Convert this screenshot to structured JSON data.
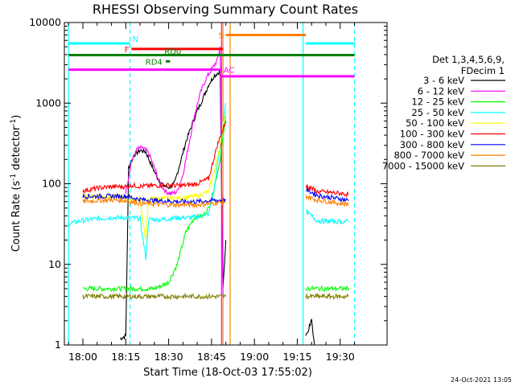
{
  "chart_data": {
    "type": "line",
    "title": "RHESSI Observing Summary Count Rates",
    "xlabel": "Start Time (18-Oct-03 17:55:02)",
    "ylabel_prefix": "Count Rate (s",
    "ylabel_sup": "-1",
    "ylabel_mid": " detector",
    "ylabel_suffix": ")",
    "y_scale": "log",
    "ylim": [
      1,
      10000
    ],
    "xlim_minutes": [
      -5,
      36
    ],
    "x_ticks": [
      {
        "label": "18:00",
        "minute": 0
      },
      {
        "label": "18:15",
        "minute": 15
      },
      {
        "label": "18:30",
        "minute": 30
      },
      {
        "label": "18:45",
        "minute": 45
      },
      {
        "label": "19:00",
        "minute": 60
      },
      {
        "label": "19:15",
        "minute": 75
      },
      {
        "label": "19:30",
        "minute": 90
      }
    ],
    "y_ticks": [
      {
        "label": "1",
        "value": 1
      },
      {
        "label": "10",
        "value": 10
      },
      {
        "label": "100",
        "value": 100
      },
      {
        "label": "1000",
        "value": 1000
      },
      {
        "label": "10000",
        "value": 10000
      }
    ],
    "legend_header": [
      "Det 1,3,4,5,6,9,",
      "FDecim 1"
    ],
    "legend_position": "right",
    "series": [
      {
        "name": "3 - 6 keV",
        "color": "#000000",
        "points": [
          [
            13,
            1.2
          ],
          [
            15,
            1.3
          ],
          [
            16,
            160
          ],
          [
            18,
            230
          ],
          [
            20,
            260
          ],
          [
            22,
            250
          ],
          [
            24,
            170
          ],
          [
            26,
            120
          ],
          [
            28,
            95
          ],
          [
            30,
            90
          ],
          [
            32,
            100
          ],
          [
            34,
            180
          ],
          [
            36,
            330
          ],
          [
            38,
            520
          ],
          [
            40,
            800
          ],
          [
            42,
            1150
          ],
          [
            44,
            1700
          ],
          [
            46,
            2200
          ],
          [
            48,
            2500
          ],
          [
            49,
            5
          ],
          [
            50,
            20
          ]
        ]
      },
      {
        "name": "6 - 12 keV",
        "color": "#ff00ff",
        "points": [
          [
            15,
            80
          ],
          [
            17,
            190
          ],
          [
            19,
            270
          ],
          [
            21,
            280
          ],
          [
            23,
            240
          ],
          [
            25,
            160
          ],
          [
            27,
            100
          ],
          [
            29,
            80
          ],
          [
            31,
            75
          ],
          [
            33,
            80
          ],
          [
            35,
            130
          ],
          [
            37,
            300
          ],
          [
            39,
            700
          ],
          [
            41,
            1300
          ],
          [
            43,
            2000
          ],
          [
            45,
            2600
          ],
          [
            47,
            3400
          ],
          [
            48,
            5000
          ],
          [
            49,
            4
          ]
        ]
      },
      {
        "name": "12 - 25 keV",
        "color": "#00ff00",
        "points": [
          [
            0,
            5
          ],
          [
            5,
            5
          ],
          [
            10,
            5
          ],
          [
            15,
            5
          ],
          [
            20,
            5
          ],
          [
            25,
            5
          ],
          [
            30,
            6
          ],
          [
            33,
            10
          ],
          [
            36,
            25
          ],
          [
            39,
            38
          ],
          [
            42,
            40
          ],
          [
            44,
            50
          ],
          [
            46,
            90
          ],
          [
            48,
            200
          ],
          [
            50,
            700
          ]
        ]
      },
      {
        "name": "25 - 50 keV",
        "color": "#00ffff",
        "points": [
          [
            -5,
            32
          ],
          [
            0,
            35
          ],
          [
            5,
            37
          ],
          [
            10,
            38
          ],
          [
            15,
            38
          ],
          [
            20,
            37
          ],
          [
            22,
            12
          ],
          [
            23,
            36
          ],
          [
            28,
            36
          ],
          [
            33,
            38
          ],
          [
            38,
            38
          ],
          [
            42,
            40
          ],
          [
            44,
            42
          ],
          [
            46,
            90
          ],
          [
            48,
            300
          ],
          [
            50,
            1000
          ]
        ]
      },
      {
        "name": "50 - 100 keV",
        "color": "#ffff00",
        "points": [
          [
            0,
            70
          ],
          [
            10,
            70
          ],
          [
            15,
            68
          ],
          [
            20,
            63
          ],
          [
            22,
            20
          ],
          [
            23,
            65
          ],
          [
            30,
            66
          ],
          [
            35,
            67
          ],
          [
            40,
            70
          ],
          [
            44,
            80
          ],
          [
            47,
            200
          ],
          [
            50,
            800
          ]
        ]
      },
      {
        "name": "100 - 300 keV",
        "color": "#ff0000",
        "points": [
          [
            0,
            82
          ],
          [
            5,
            88
          ],
          [
            10,
            92
          ],
          [
            15,
            92
          ],
          [
            17,
            96
          ],
          [
            20,
            93
          ],
          [
            25,
            95
          ],
          [
            30,
            96
          ],
          [
            35,
            95
          ],
          [
            40,
            100
          ],
          [
            44,
            115
          ],
          [
            47,
            300
          ],
          [
            50,
            600
          ]
        ]
      },
      {
        "name": "300 - 800 keV",
        "color": "#0000ff",
        "points": [
          [
            0,
            70
          ],
          [
            5,
            70
          ],
          [
            10,
            70
          ],
          [
            15,
            70
          ],
          [
            20,
            64
          ],
          [
            25,
            62
          ],
          [
            30,
            61
          ],
          [
            35,
            60
          ],
          [
            40,
            60
          ],
          [
            45,
            62
          ],
          [
            50,
            63
          ]
        ]
      },
      {
        "name": "800 - 7000 keV",
        "color": "#ff8000",
        "points": [
          [
            0,
            60
          ],
          [
            5,
            62
          ],
          [
            10,
            63
          ],
          [
            15,
            62
          ],
          [
            20,
            57
          ],
          [
            25,
            56
          ],
          [
            30,
            55
          ],
          [
            35,
            55
          ],
          [
            40,
            55
          ],
          [
            45,
            57
          ],
          [
            50,
            60
          ]
        ]
      },
      {
        "name": "7000 - 15000 keV",
        "color": "#808000",
        "points": [
          [
            0,
            4
          ],
          [
            5,
            4
          ],
          [
            10,
            4
          ],
          [
            15,
            4
          ],
          [
            20,
            4
          ],
          [
            25,
            4
          ],
          [
            30,
            4
          ],
          [
            35,
            4
          ],
          [
            40,
            4
          ],
          [
            45,
            4
          ],
          [
            50,
            4
          ]
        ]
      }
    ],
    "series_after_gap": [
      {
        "color": "#ff8000",
        "points": [
          [
            78,
            70
          ],
          [
            82,
            63
          ],
          [
            86,
            60
          ],
          [
            90,
            57
          ],
          [
            93,
            56
          ]
        ]
      },
      {
        "color": "#0000ff",
        "points": [
          [
            78,
            85
          ],
          [
            82,
            72
          ],
          [
            86,
            68
          ],
          [
            90,
            65
          ],
          [
            93,
            62
          ]
        ]
      },
      {
        "color": "#ff0000",
        "points": [
          [
            78,
            95
          ],
          [
            82,
            80
          ],
          [
            86,
            78
          ],
          [
            90,
            76
          ],
          [
            93,
            74
          ]
        ]
      },
      {
        "color": "#00ffff",
        "points": [
          [
            78,
            45
          ],
          [
            82,
            35
          ],
          [
            86,
            34
          ],
          [
            90,
            34
          ],
          [
            93,
            34
          ]
        ]
      },
      {
        "color": "#00ff00",
        "points": [
          [
            78,
            5
          ],
          [
            83,
            5
          ],
          [
            88,
            5
          ],
          [
            93,
            5
          ]
        ]
      },
      {
        "color": "#808000",
        "points": [
          [
            78,
            4
          ],
          [
            83,
            4
          ],
          [
            88,
            4
          ],
          [
            93,
            4
          ]
        ]
      },
      {
        "color": "#000000",
        "points": [
          [
            78,
            1.3
          ],
          [
            80,
            2
          ],
          [
            81,
            1
          ]
        ]
      }
    ],
    "flag_bars": [
      {
        "label": "N",
        "color": "#00ffff",
        "y": 5500,
        "segments": [
          [
            -5,
            16.5
          ],
          [
            78,
            95
          ]
        ]
      },
      {
        "label": "S",
        "color": "#ff8000",
        "y": 7000,
        "segments": [
          [
            50,
            78
          ]
        ]
      },
      {
        "label": "F",
        "color": "#ff0000",
        "y": 4700,
        "segments": [
          [
            17,
            49
          ]
        ]
      },
      {
        "label": "RD0",
        "color": "#008000",
        "y": 3950,
        "segments": [
          [
            -5,
            95
          ]
        ]
      },
      {
        "label": "RD4",
        "color": "#008000",
        "y": 3300,
        "segments": [
          [
            29,
            30.5
          ]
        ]
      },
      {
        "label": "AC",
        "color": "#ff00ff",
        "y": 2600,
        "segments": [
          [
            -5,
            48.5
          ]
        ]
      }
    ],
    "ac_step": {
      "color": "#ff00ff",
      "y": 2150,
      "segments": [
        [
          48.5,
          95
        ]
      ]
    },
    "vertical_markers": [
      {
        "minute": -5,
        "color": "#00ffff",
        "style": "solid"
      },
      {
        "minute": 16.5,
        "color": "#00ffff",
        "style": "dashed"
      },
      {
        "minute": 48.5,
        "color": "#ff00ff",
        "style": "solid"
      },
      {
        "minute": 51.5,
        "color": "#ff8000",
        "style": "solid"
      },
      {
        "minute": 49,
        "color": "#ff8000",
        "style": "solid"
      },
      {
        "minute": 77,
        "color": "#00ffff",
        "style": "solid"
      },
      {
        "minute": 95,
        "color": "#00ffff",
        "style": "dashed"
      }
    ],
    "grid": false,
    "timestamp": "24-Oct-2021 13:05"
  }
}
